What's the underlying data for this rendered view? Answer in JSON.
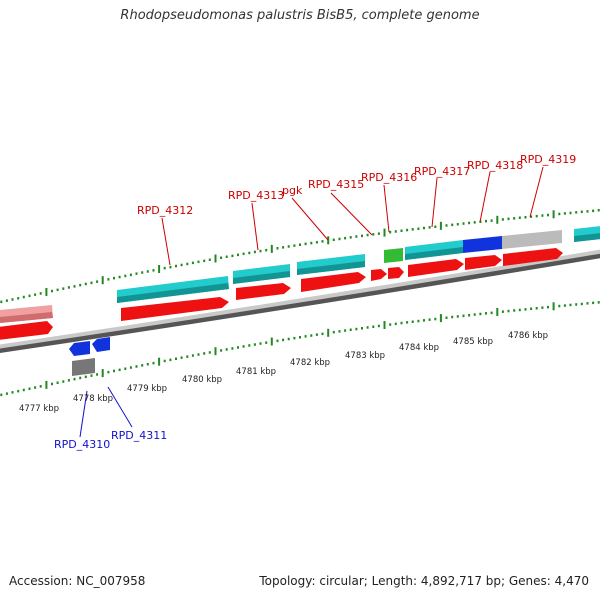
{
  "title": "Rhodopseudomonas palustris BisB5, complete genome",
  "footer": {
    "accession": "Accession: NC_007958",
    "stats": "Topology: circular; Length: 4,892,717 bp; Genes: 4,470"
  },
  "colors": {
    "backbone": "#8c8c8c",
    "cds": "#ee1111",
    "cds_light": "#f08080",
    "rrna": "#22cccc",
    "rrna_light": "#f0a0a0",
    "trna": "#33bb33",
    "blue_gene": "#1133dd",
    "gray_gene": "#777777",
    "tick": "#228822",
    "forward_label": "#cc0000",
    "reverse_label": "#1111cc"
  },
  "scale_labels": [
    "4777 kbp",
    "4778 kbp",
    "4779 kbp",
    "4780 kbp",
    "4781 kbp",
    "4782 kbp",
    "4783 kbp",
    "4784 kbp",
    "4785 kbp",
    "4786 kbp"
  ],
  "gene_labels": {
    "forward": [
      "RPD_4312",
      "RPD_4313",
      "pgk",
      "RPD_4315",
      "RPD_4316",
      "RPD_4317",
      "RPD_4318",
      "RPD_4319"
    ],
    "reverse": [
      "RPD_4310",
      "RPD_4311"
    ]
  }
}
